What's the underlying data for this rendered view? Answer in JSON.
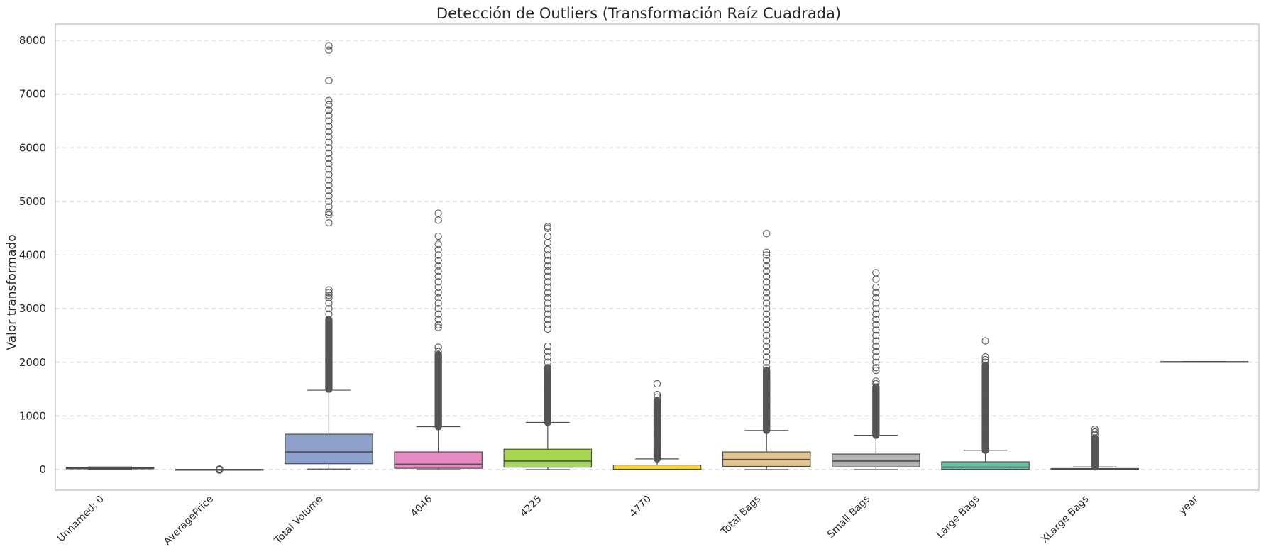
{
  "chart_data": {
    "type": "box",
    "title": "Detección de Outliers (Transformación Raíz Cuadrada)",
    "xlabel": "",
    "ylabel": "Valor transformado",
    "ylim": [
      -400,
      8300
    ],
    "yticks": [
      0,
      1000,
      2000,
      3000,
      4000,
      5000,
      6000,
      7000,
      8000
    ],
    "grid": true,
    "legend": "none",
    "categories": [
      "Unnamed: 0",
      "AveragePrice",
      "Total Volume",
      "4046",
      "4225",
      "4770",
      "Total Bags",
      "Small Bags",
      "Large Bags",
      "XLarge Bags",
      "year"
    ],
    "colors": [
      "#66c2a5",
      "#fc8d62",
      "#8da0cb",
      "#e78ac3",
      "#a6d854",
      "#ffd92f",
      "#e5c494",
      "#b3b3b3",
      "#66c2a5",
      "#fc8d62",
      "#8da0cb"
    ],
    "boxes": [
      {
        "q1": 15,
        "median": 25,
        "q3": 40,
        "whisker_low": 0,
        "whisker_high": 50,
        "outliers": []
      },
      {
        "q1": 1,
        "median": 1.2,
        "q3": 1.4,
        "whisker_low": 0.6,
        "whisker_high": 2,
        "outliers": [
          -10,
          -5,
          3,
          8,
          12
        ]
      },
      {
        "q1": 110,
        "median": 330,
        "q3": 660,
        "whisker_low": 10,
        "whisker_high": 1480,
        "outliers_dense": [
          [
            1500,
            2800
          ]
        ],
        "outliers": [
          2900,
          3000,
          3100,
          3200,
          3250,
          3300,
          3350,
          4600,
          4750,
          4800,
          4900,
          5000,
          5100,
          5200,
          5300,
          5400,
          5500,
          5600,
          5700,
          5800,
          5900,
          6000,
          6100,
          6200,
          6300,
          6400,
          6500,
          6600,
          6700,
          6800,
          6880,
          7250,
          7820,
          7900
        ]
      },
      {
        "q1": 25,
        "median": 100,
        "q3": 330,
        "whisker_low": 0,
        "whisker_high": 800,
        "outliers_dense": [
          [
            800,
            2150
          ]
        ],
        "outliers": [
          2200,
          2280,
          2650,
          2700,
          2800,
          2900,
          3000,
          3100,
          3200,
          3300,
          3400,
          3500,
          3600,
          3700,
          3800,
          3900,
          4000,
          4100,
          4200,
          4350,
          4650,
          4780
        ]
      },
      {
        "q1": 45,
        "median": 160,
        "q3": 380,
        "whisker_low": 0,
        "whisker_high": 880,
        "outliers_dense": [
          [
            880,
            1900
          ]
        ],
        "outliers": [
          2000,
          2100,
          2200,
          2300,
          2620,
          2700,
          2800,
          2900,
          3000,
          3100,
          3200,
          3300,
          3400,
          3500,
          3600,
          3700,
          3800,
          3900,
          4000,
          4100,
          4230,
          4350,
          4500,
          4530
        ]
      },
      {
        "q1": 0,
        "median": 5,
        "q3": 85,
        "whisker_low": 0,
        "whisker_high": 200,
        "outliers_dense": [
          [
            200,
            1300
          ]
        ],
        "outliers": [
          1350,
          1400,
          1600
        ]
      },
      {
        "q1": 60,
        "median": 190,
        "q3": 330,
        "whisker_low": 0,
        "whisker_high": 730,
        "outliers_dense": [
          [
            730,
            1850
          ]
        ],
        "outliers": [
          1900,
          2000,
          2100,
          2200,
          2300,
          2400,
          2500,
          2600,
          2700,
          2800,
          2900,
          3000,
          3100,
          3200,
          3300,
          3400,
          3500,
          3600,
          3700,
          3800,
          3900,
          4000,
          4050,
          4400
        ]
      },
      {
        "q1": 50,
        "median": 160,
        "q3": 290,
        "whisker_low": 0,
        "whisker_high": 640,
        "outliers_dense": [
          [
            640,
            1550
          ]
        ],
        "outliers": [
          1600,
          1650,
          1850,
          1900,
          2000,
          2100,
          2200,
          2300,
          2400,
          2500,
          2600,
          2700,
          2800,
          2900,
          3000,
          3100,
          3200,
          3300,
          3400,
          3550,
          3670
        ]
      },
      {
        "q1": 5,
        "median": 45,
        "q3": 145,
        "whisker_low": 0,
        "whisker_high": 360,
        "outliers_dense": [
          [
            360,
            1950
          ]
        ],
        "outliers": [
          2000,
          2050,
          2100,
          2400
        ]
      },
      {
        "q1": 0,
        "median": 2,
        "q3": 20,
        "whisker_low": 0,
        "whisker_high": 50,
        "outliers_dense": [
          [
            50,
            600
          ]
        ],
        "outliers": [
          650,
          700,
          750
        ]
      },
      {
        "q1": 2008,
        "median": 2010,
        "q3": 2012,
        "whisker_low": 2005,
        "whisker_high": 2015,
        "outliers": []
      }
    ]
  }
}
